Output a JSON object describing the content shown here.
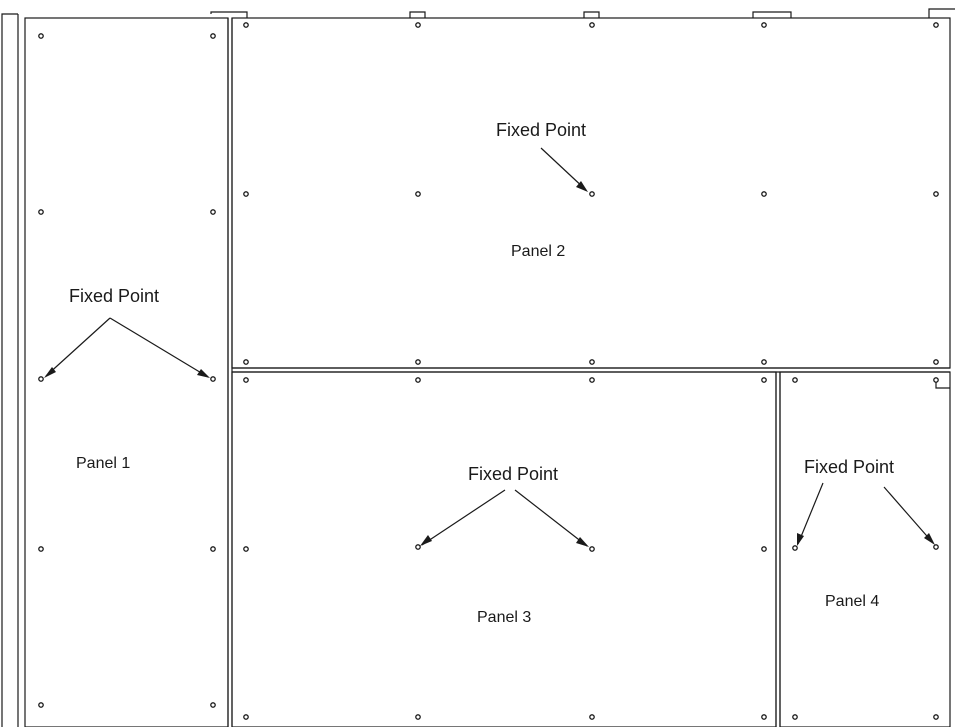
{
  "panels": [
    {
      "id": "panel-1",
      "label": "Panel 1"
    },
    {
      "id": "panel-2",
      "label": "Panel 2"
    },
    {
      "id": "panel-3",
      "label": "Panel 3"
    },
    {
      "id": "panel-4",
      "label": "Panel 4"
    }
  ],
  "fixed_point_label": "Fixed Point"
}
